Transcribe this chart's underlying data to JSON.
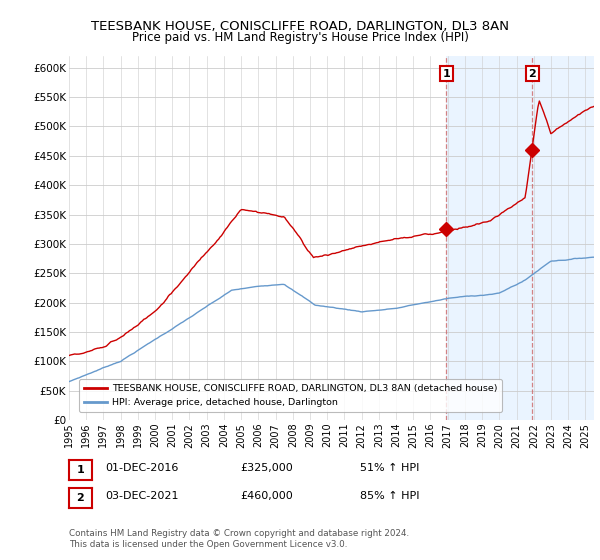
{
  "title": "TEESBANK HOUSE, CONISCLIFFE ROAD, DARLINGTON, DL3 8AN",
  "subtitle": "Price paid vs. HM Land Registry's House Price Index (HPI)",
  "ylabel_ticks": [
    "£0",
    "£50K",
    "£100K",
    "£150K",
    "£200K",
    "£250K",
    "£300K",
    "£350K",
    "£400K",
    "£450K",
    "£500K",
    "£550K",
    "£600K"
  ],
  "ytick_values": [
    0,
    50000,
    100000,
    150000,
    200000,
    250000,
    300000,
    350000,
    400000,
    450000,
    500000,
    550000,
    600000
  ],
  "xlim_start": 1995.0,
  "xlim_end": 2025.5,
  "ylim": [
    0,
    620000
  ],
  "purchase1": {
    "date_x": 2016.92,
    "price": 325000,
    "label": "1"
  },
  "purchase2": {
    "date_x": 2021.92,
    "price": 460000,
    "label": "2"
  },
  "legend_entry1": "TEESBANK HOUSE, CONISCLIFFE ROAD, DARLINGTON, DL3 8AN (detached house)",
  "legend_entry2": "HPI: Average price, detached house, Darlington",
  "annotation1_date": "01-DEC-2016",
  "annotation1_price": "£325,000",
  "annotation1_hpi": "51% ↑ HPI",
  "annotation2_date": "03-DEC-2021",
  "annotation2_price": "£460,000",
  "annotation2_hpi": "85% ↑ HPI",
  "footer": "Contains HM Land Registry data © Crown copyright and database right 2024.\nThis data is licensed under the Open Government Licence v3.0.",
  "line1_color": "#cc0000",
  "line2_color": "#6699cc",
  "vline_color": "#cc6666",
  "highlight_color": "#ddeeff",
  "label1_box_color": "#ffdddd"
}
